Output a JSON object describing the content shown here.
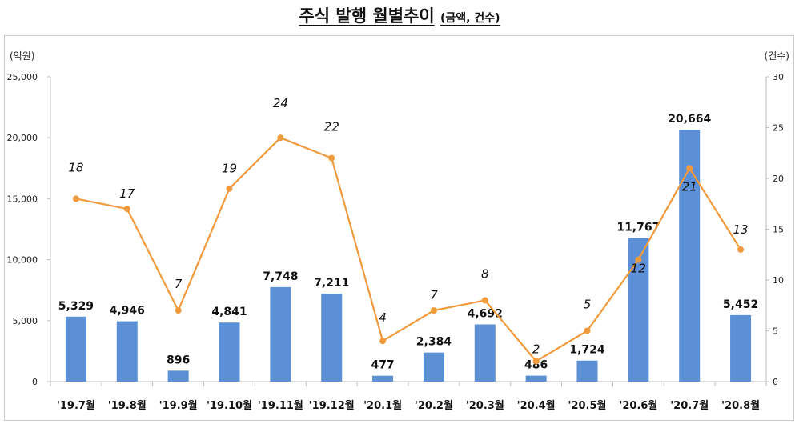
{
  "title": {
    "main": "주식 발행 월별추이",
    "sub": "(금액, 건수)"
  },
  "chart_data": {
    "type": "bar",
    "categories": [
      "'19.7월",
      "'19.8월",
      "'19.9월",
      "'19.10월",
      "'19.11월",
      "'19.12월",
      "'20.1월",
      "'20.2월",
      "'20.3월",
      "'20.4월",
      "'20.5월",
      "'20.6월",
      "'20.7월",
      "'20.8월"
    ],
    "series": [
      {
        "type": "bar",
        "axis": "left",
        "color": "#5b8fd6",
        "values": [
          5329,
          4946,
          896,
          4841,
          7748,
          7211,
          477,
          2384,
          4692,
          486,
          1724,
          11767,
          20664,
          5452
        ],
        "labels": [
          "5,329",
          "4,946",
          "896",
          "4,841",
          "7,748",
          "7,211",
          "477",
          "2,384",
          "4,692",
          "486",
          "1,724",
          "11,767",
          "20,664",
          "5,452"
        ]
      },
      {
        "type": "line",
        "axis": "right",
        "color": "#f09a3c",
        "values": [
          18,
          17,
          7,
          19,
          24,
          22,
          4,
          7,
          8,
          2,
          5,
          12,
          21,
          13
        ],
        "labels": [
          "18",
          "17",
          "7",
          "19",
          "24",
          "22",
          "4",
          "7",
          "8",
          "2",
          "5",
          "12",
          "21",
          "13"
        ]
      }
    ],
    "y_left": {
      "unit": "(억원)",
      "ylim": [
        0,
        25000
      ],
      "ticks": [
        "0",
        "5,000",
        "10,000",
        "15,000",
        "20,000",
        "25,000"
      ]
    },
    "y_right": {
      "unit": "(건수)",
      "ylim": [
        0,
        30
      ],
      "ticks": [
        "0",
        "5",
        "10",
        "15",
        "20",
        "25",
        "30"
      ]
    },
    "grid": false,
    "legend": "none"
  }
}
